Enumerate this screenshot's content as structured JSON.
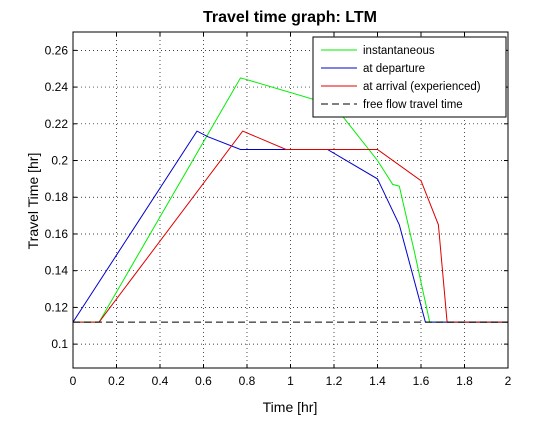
{
  "chart_data": {
    "type": "line",
    "title": "Travel time graph: LTM",
    "xlabel": "Time [hr]",
    "ylabel": "Travel Time [hr]",
    "xlim": [
      0,
      2
    ],
    "ylim": [
      0.087,
      0.27
    ],
    "x_ticks": [
      0,
      0.2,
      0.4,
      0.6,
      0.8,
      1,
      1.2,
      1.4,
      1.6,
      1.8,
      2
    ],
    "x_tick_labels": [
      "0",
      "0.2",
      "0.4",
      "0.6",
      "0.8",
      "1",
      "1.2",
      "1.4",
      "1.6",
      "1.8",
      "2"
    ],
    "y_ticks": [
      0.1,
      0.12,
      0.14,
      0.16,
      0.18,
      0.2,
      0.22,
      0.24,
      0.26
    ],
    "y_tick_labels": [
      "0.1",
      "0.12",
      "0.14",
      "0.16",
      "0.18",
      "0.2",
      "0.22",
      "0.24",
      "0.26"
    ],
    "grid": true,
    "legend_position": "top-right",
    "series": [
      {
        "name": "instantaneous",
        "color": "#00ee00",
        "dash": "solid",
        "points": [
          [
            0,
            0.112
          ],
          [
            0.12,
            0.112
          ],
          [
            0.77,
            0.245
          ],
          [
            0.8,
            0.244
          ],
          [
            1.2,
            0.23
          ],
          [
            1.4,
            0.2
          ],
          [
            1.47,
            0.187
          ],
          [
            1.5,
            0.186
          ],
          [
            1.57,
            0.15
          ],
          [
            1.64,
            0.112
          ],
          [
            2,
            0.112
          ]
        ]
      },
      {
        "name": "at departure",
        "color": "#0000cc",
        "dash": "solid",
        "points": [
          [
            0,
            0.112
          ],
          [
            0.57,
            0.216
          ],
          [
            0.62,
            0.213
          ],
          [
            0.77,
            0.206
          ],
          [
            1.17,
            0.206
          ],
          [
            1.4,
            0.19
          ],
          [
            1.5,
            0.165
          ],
          [
            1.62,
            0.112
          ],
          [
            2,
            0.112
          ]
        ]
      },
      {
        "name": "at arrival (experienced)",
        "color": "#dd0000",
        "dash": "solid",
        "points": [
          [
            0,
            0.112
          ],
          [
            0.12,
            0.112
          ],
          [
            0.78,
            0.216
          ],
          [
            0.98,
            0.206
          ],
          [
            1.4,
            0.206
          ],
          [
            1.6,
            0.189
          ],
          [
            1.68,
            0.165
          ],
          [
            1.72,
            0.112
          ],
          [
            2,
            0.112
          ]
        ]
      },
      {
        "name": "free flow travel time",
        "color": "#000000",
        "dash": "dashed",
        "points": [
          [
            0,
            0.112
          ],
          [
            2,
            0.112
          ]
        ]
      }
    ]
  }
}
